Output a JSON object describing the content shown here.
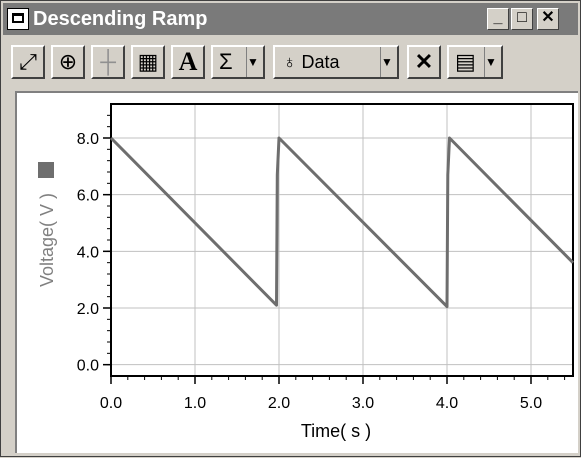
{
  "window": {
    "title": "Descending Ramp",
    "controls": {
      "minimize": "_",
      "maximize": "□",
      "close": "✕"
    }
  },
  "toolbar": {
    "items": [
      {
        "name": "autoscale-button",
        "icon": "autoscale-icon",
        "label": ""
      },
      {
        "name": "zoom-in-button",
        "icon": "zoom-in-icon",
        "label": ""
      },
      {
        "name": "examine-button",
        "icon": "examine-crosshair-icon",
        "label": ""
      },
      {
        "name": "statistics-button",
        "icon": "calculator-icon",
        "label": ""
      },
      {
        "name": "annotation-button",
        "icon": "text-a-icon",
        "label": "A"
      },
      {
        "name": "sigma-button",
        "icon": "sigma-icon",
        "label": "Σ"
      },
      {
        "name": "data-button",
        "icon": "drop-icon",
        "label": "Data"
      },
      {
        "name": "delete-button",
        "icon": "x-icon",
        "label": "✕"
      },
      {
        "name": "graph-options-button",
        "icon": "graph-options-icon",
        "label": ""
      }
    ]
  },
  "chart_data": {
    "type": "line",
    "title": "",
    "xlabel": "Time( s )",
    "ylabel": "Voltage( V )",
    "xlim": [
      0,
      5.5
    ],
    "ylim": [
      -0.4,
      9.2
    ],
    "grid": true,
    "x_ticks": [
      "0.0",
      "1.0",
      "2.0",
      "3.0",
      "4.0",
      "5.0"
    ],
    "y_ticks": [
      "0.0",
      "2.0",
      "4.0",
      "6.0",
      "8.0"
    ],
    "series": [
      {
        "color": "#6e6e6e",
        "x": [
          0.0,
          1.97,
          1.98,
          2.0,
          4.0,
          4.01,
          4.03,
          5.5
        ],
        "y": [
          8.0,
          2.1,
          6.7,
          8.0,
          2.05,
          6.7,
          8.0,
          3.6
        ]
      }
    ]
  }
}
